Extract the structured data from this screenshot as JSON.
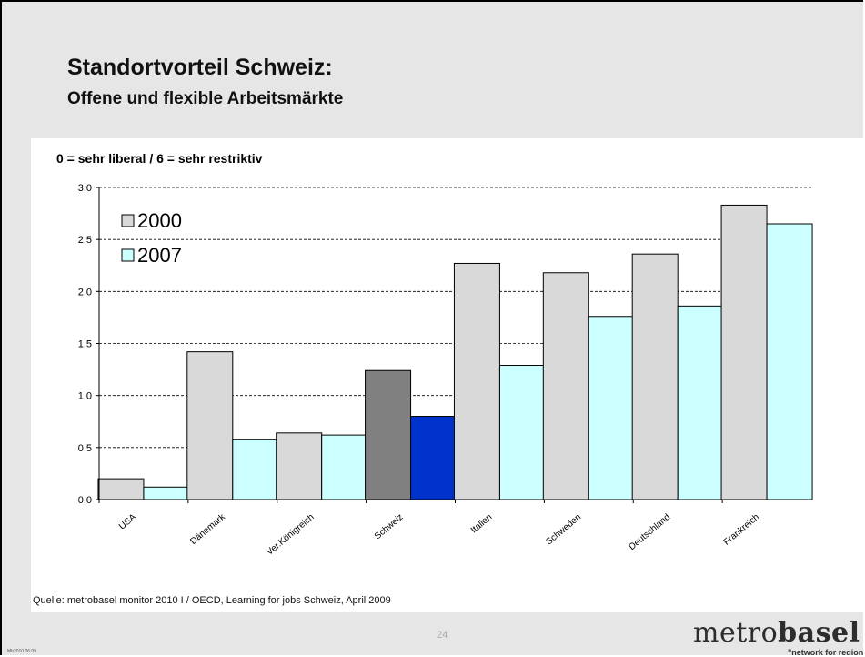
{
  "slide": {
    "title": "Standortvorteil Schweiz:",
    "subtitle": "Offene und flexible Arbeitsmärkte",
    "source": "Quelle: metrobasel monitor 2010 I / OECD, Learning for jobs Schweiz, April 2009",
    "page_number": "24",
    "footer_date": "Mb2010.06.09",
    "logo_part1": "metro",
    "logo_part2": "basel",
    "logo_tagline": "\"network for region\""
  },
  "colors": {
    "background": "#e6e6e6",
    "panel": "#ffffff",
    "series_2000": "#d9d9d9",
    "series_2007": "#ccffff",
    "highlight_2000": "#808080",
    "highlight_2007": "#0033cc"
  },
  "chart_data": {
    "type": "bar",
    "title": "0 = sehr liberal / 6 = sehr restriktiv",
    "xlabel": "",
    "ylabel": "",
    "categories": [
      "USA",
      "Dänemark",
      "Ver.Königreich",
      "Schweiz",
      "Italien",
      "Schweden",
      "Deutschland",
      "Frankreich"
    ],
    "series": [
      {
        "name": "2000",
        "values": [
          0.2,
          1.42,
          0.64,
          1.24,
          2.27,
          2.18,
          2.36,
          2.83
        ]
      },
      {
        "name": "2007",
        "values": [
          0.12,
          0.58,
          0.62,
          0.8,
          1.29,
          1.76,
          1.86,
          2.65
        ]
      }
    ],
    "highlight_category": "Schweiz",
    "ylim": [
      0,
      3
    ],
    "yticks": [
      "0.0",
      "0.5",
      "1.0",
      "1.5",
      "2.0",
      "2.5",
      "3.0"
    ],
    "grid": "horizontal dashed",
    "legend_position": "top-left"
  }
}
